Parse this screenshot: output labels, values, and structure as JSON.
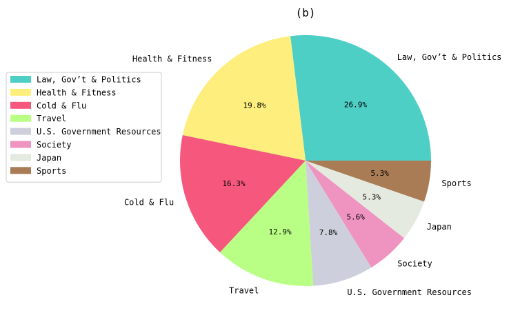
{
  "chart_data": {
    "type": "pie",
    "title": "(b)",
    "legend_position": "left",
    "slices": [
      {
        "label": "Law, Gov’t & Politics",
        "value": 26.9,
        "value_label": "26.9%",
        "color": "#4ecfc6"
      },
      {
        "label": "Health & Fitness",
        "value": 19.8,
        "value_label": "19.8%",
        "color": "#fdee7d"
      },
      {
        "label": "Cold & Flu",
        "value": 16.3,
        "value_label": "16.3%",
        "color": "#f6577d"
      },
      {
        "label": "Travel",
        "value": 12.9,
        "value_label": "12.9%",
        "color": "#baff85"
      },
      {
        "label": "U.S. Government Resources",
        "value": 7.8,
        "value_label": "7.8%",
        "color": "#cdd0dc"
      },
      {
        "label": "Society",
        "value": 5.6,
        "value_label": "5.6%",
        "color": "#ef93c1"
      },
      {
        "label": "Japan",
        "value": 5.3,
        "value_label": "5.3%",
        "color": "#e4eadf"
      },
      {
        "label": "Sports",
        "value": 5.3,
        "value_label": "5.3%",
        "color": "#a97c56"
      }
    ]
  }
}
